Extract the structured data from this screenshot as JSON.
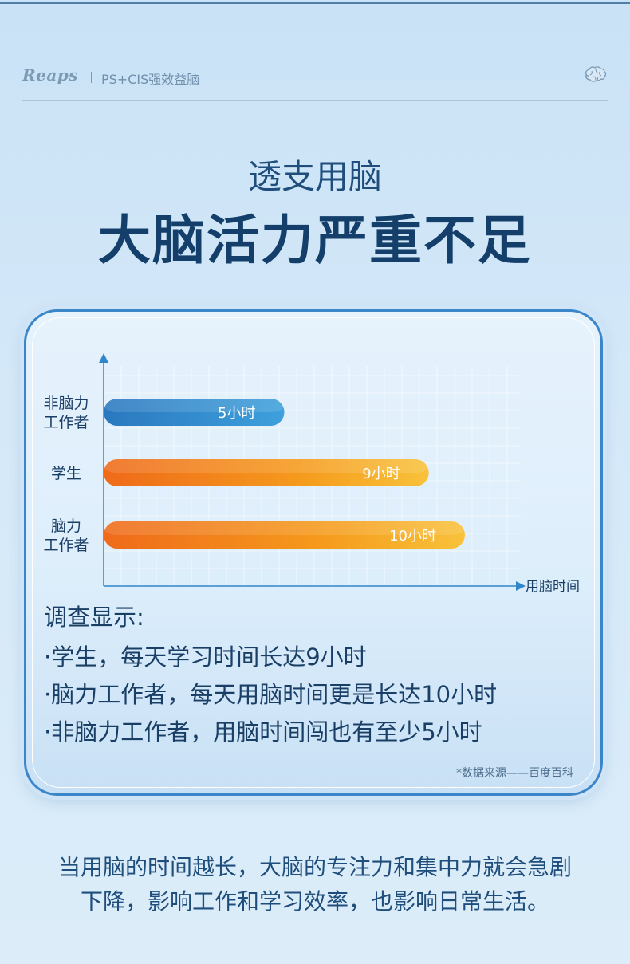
{
  "header": {
    "brand": "Reaps",
    "tagline": "PS+CIS强效益脑",
    "right_icon": "brain-icon"
  },
  "hero": {
    "subtitle": "透支用脑",
    "title": "大脑活力严重不足"
  },
  "chart_data": {
    "type": "bar",
    "orientation": "horizontal",
    "categories": [
      "非脑力工作者",
      "学生",
      "脑力工作者"
    ],
    "category_lines": [
      [
        "非脑力",
        "工作者"
      ],
      [
        "学生"
      ],
      [
        "脑力",
        "工作者"
      ]
    ],
    "values": [
      5,
      9,
      10
    ],
    "data_labels": [
      "5小时",
      "9小时",
      "10小时"
    ],
    "xlabel": "用脑时间",
    "colors": [
      "#2f86c9",
      "#f39019",
      "#f39019"
    ],
    "grid": true
  },
  "survey": {
    "title": "调查显示:",
    "items": [
      "·学生，每天学习时间长达9小时",
      "·脑力工作者，每天用脑时间更是长达10小时",
      "·非脑力工作者，用脑时间闯也有至少5小时"
    ]
  },
  "source": "*数据来源——百度百科",
  "footer": {
    "lines": [
      "当用脑的时间越长，大脑的专注力和集中力就会急剧",
      "下降，影响工作和学习效率，也影响日常生活。"
    ]
  }
}
